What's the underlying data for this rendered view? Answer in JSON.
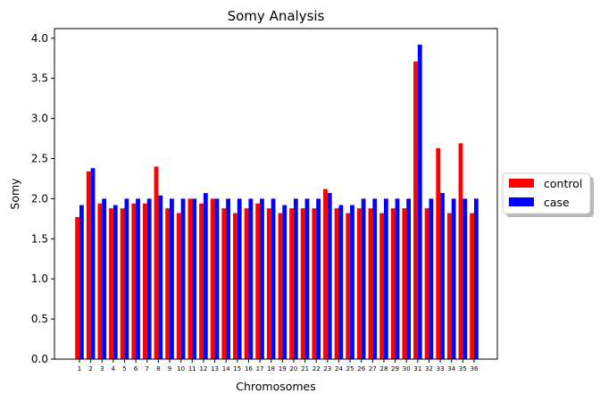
{
  "chart_data": {
    "type": "bar",
    "title": "Somy Analysis",
    "xlabel": "Chromosomes",
    "ylabel": "Somy",
    "ylim": [
      0,
      4.12
    ],
    "yticks": [
      "0.0",
      "0.5",
      "1.0",
      "1.5",
      "2.0",
      "2.5",
      "3.0",
      "3.5",
      "4.0"
    ],
    "categories": [
      "1",
      "2",
      "3",
      "4",
      "5",
      "6",
      "7",
      "8",
      "9",
      "10",
      "11",
      "12",
      "13",
      "14",
      "15",
      "16",
      "17",
      "18",
      "19",
      "20",
      "21",
      "22",
      "23",
      "24",
      "25",
      "26",
      "27",
      "28",
      "29",
      "30",
      "31",
      "32",
      "33",
      "34",
      "35",
      "36"
    ],
    "series": [
      {
        "name": "control",
        "color": "#ff0000",
        "values": [
          1.77,
          2.34,
          1.94,
          1.88,
          1.88,
          1.94,
          1.94,
          2.4,
          1.88,
          1.82,
          2.0,
          1.94,
          2.0,
          1.88,
          1.82,
          1.88,
          1.94,
          1.88,
          1.82,
          1.88,
          1.88,
          1.88,
          2.12,
          1.88,
          1.82,
          1.88,
          1.88,
          1.82,
          1.88,
          1.88,
          3.71,
          1.88,
          2.63,
          1.82,
          2.69,
          1.82
        ]
      },
      {
        "name": "case",
        "color": "#0000ff",
        "values": [
          1.92,
          2.38,
          2.0,
          1.92,
          2.0,
          2.0,
          2.0,
          2.04,
          2.0,
          2.0,
          2.0,
          2.07,
          2.0,
          2.0,
          2.0,
          2.0,
          2.0,
          2.0,
          1.92,
          2.0,
          2.0,
          2.0,
          2.07,
          1.92,
          1.92,
          2.0,
          2.0,
          2.0,
          2.0,
          2.0,
          3.92,
          2.0,
          2.07,
          2.0,
          2.0,
          2.0
        ]
      }
    ],
    "legend": {
      "position": "right",
      "entries": [
        "control",
        "case"
      ]
    },
    "grid": false
  }
}
